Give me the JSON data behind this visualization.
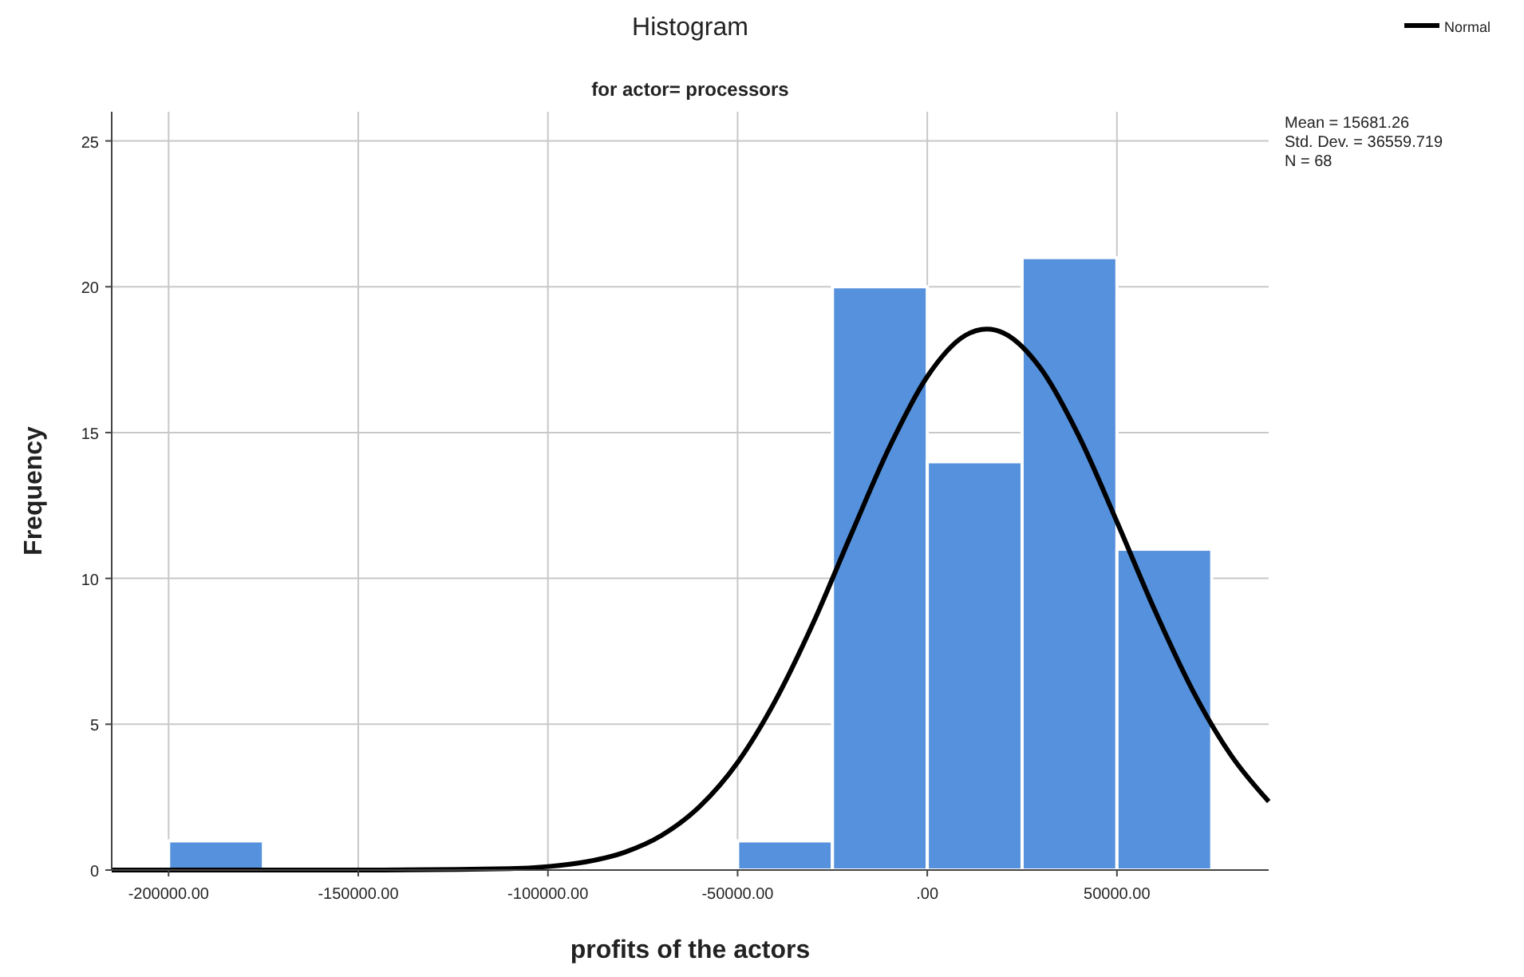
{
  "chart_data": {
    "type": "histogram",
    "title": "Histogram",
    "subtitle": "for actor= processors",
    "xlabel": "profits of the actors",
    "ylabel": "Frequency",
    "bins": [
      -200000,
      -175000,
      -150000,
      -125000,
      -100000,
      -75000,
      -50000,
      -25000,
      0,
      25000,
      50000,
      75000
    ],
    "values": [
      1,
      0,
      0,
      0,
      0,
      0,
      1,
      20,
      14,
      21,
      11
    ],
    "color": "#5591dc",
    "series": [
      {
        "type": "line",
        "name": "Normal",
        "color": "#000000",
        "x": [
          -215000,
          -150000,
          -110000,
          -100000,
          -90000,
          -80000,
          -70000,
          -60000,
          -50000,
          -40000,
          -30000,
          -20000,
          -10000,
          0,
          10000,
          15681,
          20000,
          30000,
          40000,
          50000,
          60000,
          70000,
          80000,
          90000
        ],
        "values": [
          0,
          0,
          0.05,
          0.12,
          0.28,
          0.6,
          1.19,
          2.18,
          3.69,
          5.82,
          8.49,
          11.53,
          14.49,
          16.92,
          18.33,
          18.55,
          18.42,
          17.18,
          14.87,
          11.94,
          8.9,
          6.15,
          3.95,
          2.35
        ]
      }
    ],
    "xlim": [
      -215000,
      90000
    ],
    "xticks": [
      {
        "value": -200000,
        "label": "-200000.00"
      },
      {
        "value": -150000,
        "label": "-150000.00"
      },
      {
        "value": -100000,
        "label": "-100000.00"
      },
      {
        "value": -50000,
        "label": "-50000.00"
      },
      {
        "value": 0,
        "label": ".00"
      },
      {
        "value": 50000,
        "label": "50000.00"
      }
    ],
    "ylim": [
      0,
      26
    ],
    "yticks": [
      0,
      5,
      10,
      15,
      20,
      25
    ],
    "grid": true,
    "legend": "top right",
    "annotations": [
      "Mean = 15681.26",
      "Std. Dev. = 36559.719",
      "N = 68"
    ]
  }
}
